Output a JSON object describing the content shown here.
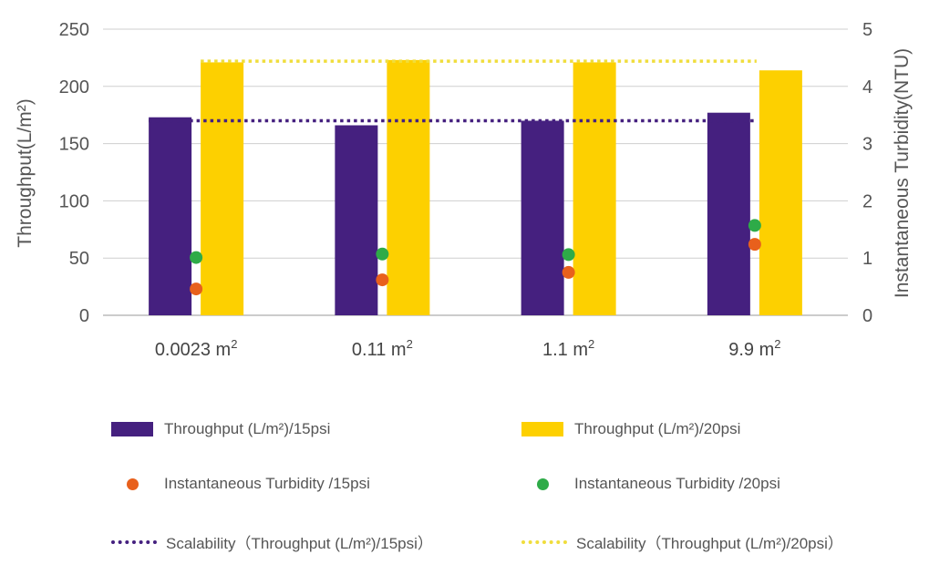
{
  "chart_data": {
    "type": "bar",
    "categories": [
      "0.0023 m",
      "0.11 m",
      "1.1 m",
      "9.9 m"
    ],
    "category_superscript": "2",
    "ylabel_left": "Throughput(L/m²)",
    "ylabel_right": "Instantaneous Turbidity(NTU)",
    "ylim_left": [
      0,
      250
    ],
    "yticks_left": [
      0,
      50,
      100,
      150,
      200,
      250
    ],
    "ylim_right": [
      0,
      5
    ],
    "yticks_right": [
      0,
      1,
      2,
      3,
      4,
      5
    ],
    "grid": true,
    "series": [
      {
        "name": "Throughput (L/m²)/15psi",
        "kind": "bar",
        "axis": "left",
        "color": "#45207f",
        "values": [
          173,
          166,
          170,
          177
        ]
      },
      {
        "name": "Throughput (L/m²)/20psi",
        "kind": "bar",
        "axis": "left",
        "color": "#fdd000",
        "values": [
          221,
          223,
          221,
          214
        ]
      },
      {
        "name": "Instantaneous Turbidity /15psi",
        "kind": "scatter",
        "axis": "right",
        "color": "#e8601c",
        "values": [
          0.46,
          0.62,
          0.75,
          1.24
        ]
      },
      {
        "name": "Instantaneous Turbidity /20psi",
        "kind": "scatter",
        "axis": "right",
        "color": "#2eab48",
        "values": [
          1.01,
          1.07,
          1.06,
          1.57
        ]
      },
      {
        "name": "Scalability（Throughput (L/m²)/15psi）",
        "kind": "line",
        "style": "dotted",
        "axis": "left",
        "color": "#45207f",
        "value": 170
      },
      {
        "name": "Scalability（Throughput (L/m²)/20psi）",
        "kind": "line",
        "style": "dotted",
        "axis": "left",
        "color": "#f0dd3c",
        "value": 222
      }
    ],
    "legend": {
      "placement": "bottom",
      "items": [
        {
          "label": "Throughput (L/m²)/15psi",
          "swatch": "bar",
          "color": "#45207f"
        },
        {
          "label": "Throughput (L/m²)/20psi",
          "swatch": "bar",
          "color": "#fdd000"
        },
        {
          "label": "Instantaneous Turbidity /15psi",
          "swatch": "dot",
          "color": "#e8601c"
        },
        {
          "label": "Instantaneous Turbidity /20psi",
          "swatch": "dot",
          "color": "#2eab48"
        },
        {
          "label": "Scalability（Throughput (L/m²)/15psi）",
          "swatch": "line",
          "color": "#45207f"
        },
        {
          "label": "Scalability（Throughput (L/m²)/20psi）",
          "swatch": "line",
          "color": "#f0dd3c"
        }
      ]
    }
  }
}
